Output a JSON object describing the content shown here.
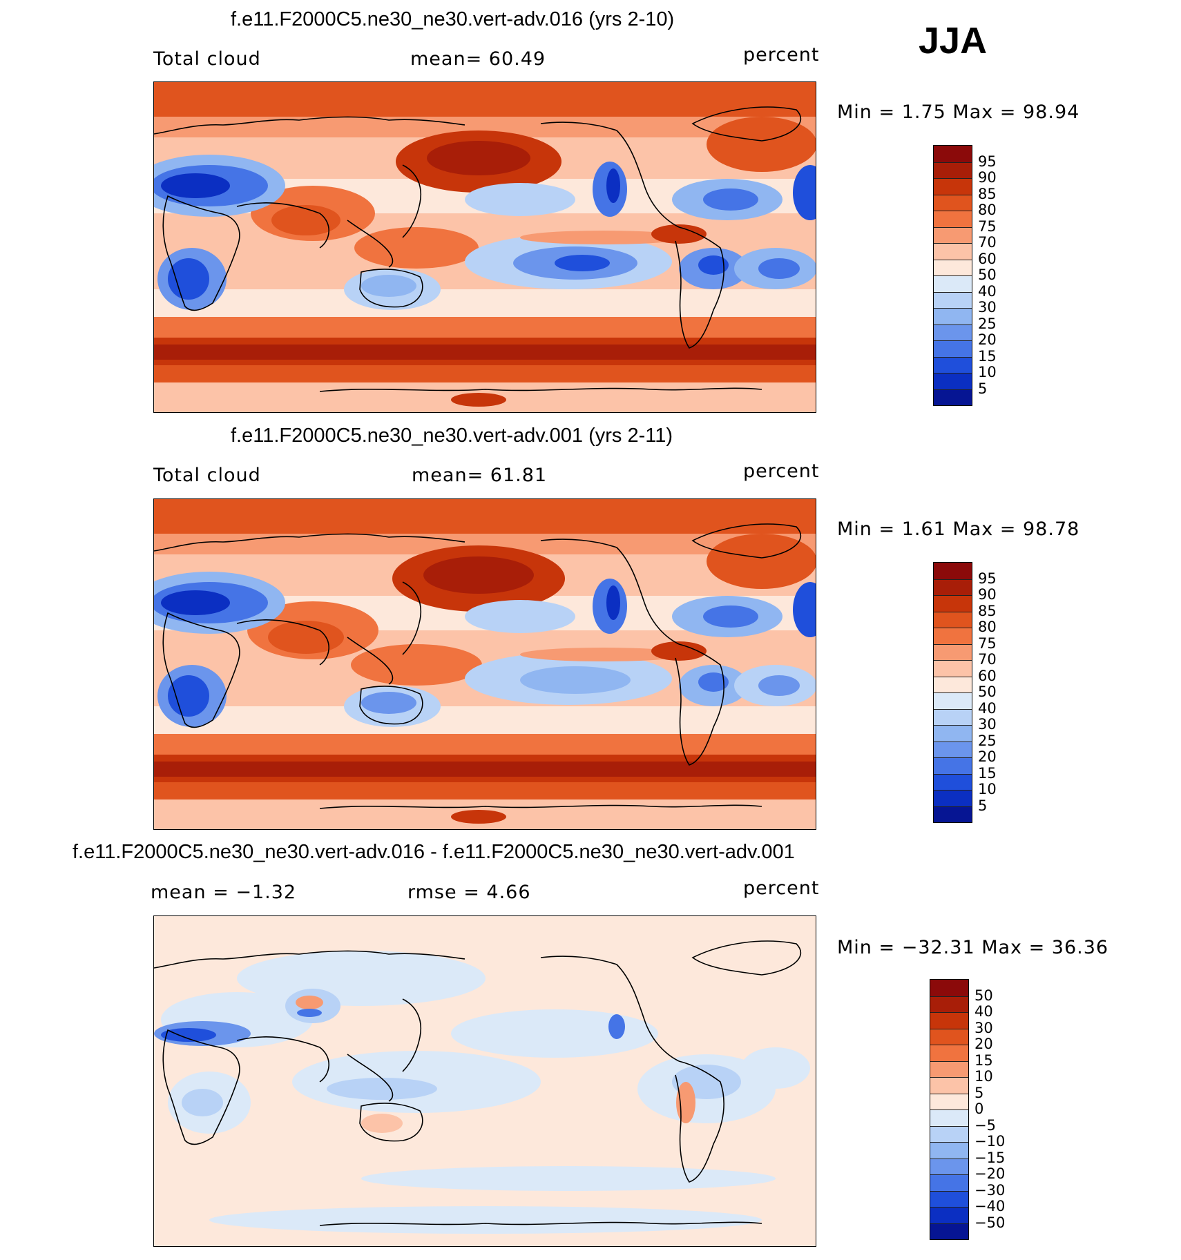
{
  "season": "JJA",
  "panels": [
    {
      "title": "f.e11.F2000C5.ne30_ne30.vert-adv.016 (yrs 2-10)",
      "variable": "Total cloud",
      "stat_text": "mean=   60.49",
      "units": "percent",
      "minmax_text": "Min =    1.75 Max =   98.94",
      "field": "control"
    },
    {
      "title": "f.e11.F2000C5.ne30_ne30.vert-adv.001 (yrs 2-11)",
      "variable": "Total cloud",
      "stat_text": "mean=   61.81",
      "units": "percent",
      "minmax_text": "Min =    1.61 Max =   98.78",
      "field": "control"
    },
    {
      "title": "f.e11.F2000C5.ne30_ne30.vert-adv.016 - f.e11.F2000C5.ne30_ne30.vert-adv.001",
      "variable": "mean =  −1.32",
      "stat_text": "rmse =    4.66",
      "units": "percent",
      "minmax_text": "Min = −32.31 Max =   36.36",
      "field": "difference"
    }
  ],
  "colorbar_abs": {
    "labels": [
      "95",
      "90",
      "85",
      "80",
      "75",
      "70",
      "60",
      "50",
      "40",
      "30",
      "25",
      "20",
      "15",
      "10",
      "5"
    ],
    "colors": [
      "#8b0a0a",
      "#a81e08",
      "#c7350a",
      "#e0541e",
      "#f0733f",
      "#f79a72",
      "#fcc3a8",
      "#fde8db",
      "#dbe9f8",
      "#b8d2f6",
      "#90b6f1",
      "#6b95ec",
      "#4574e6",
      "#1f4fdb",
      "#0b2fc2",
      "#061593"
    ]
  },
  "colorbar_diff": {
    "labels": [
      "50",
      "40",
      "30",
      "20",
      "15",
      "10",
      "5",
      "0",
      "−5",
      "−10",
      "−15",
      "−20",
      "−30",
      "−40",
      "−50"
    ],
    "colors": [
      "#8b0a0a",
      "#a81e08",
      "#c7350a",
      "#e0541e",
      "#f0733f",
      "#f79a72",
      "#fcc3a8",
      "#fde8db",
      "#dbe9f8",
      "#b8d2f6",
      "#90b6f1",
      "#6b95ec",
      "#4574e6",
      "#1f4fdb",
      "#0b2fc2",
      "#061593"
    ]
  }
}
